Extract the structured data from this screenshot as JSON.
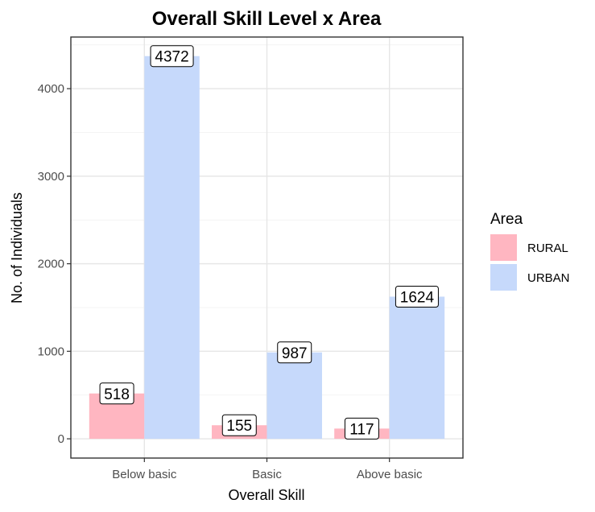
{
  "chart_data": {
    "type": "bar",
    "title": "Overall Skill Level x Area",
    "xlabel": "Overall Skill",
    "ylabel": "No. of Individuals",
    "categories": [
      "Below basic",
      "Basic",
      "Above basic"
    ],
    "series": [
      {
        "name": "RURAL",
        "values": [
          518,
          155,
          117
        ],
        "color": "#ffb6c1"
      },
      {
        "name": "URBAN",
        "values": [
          4372,
          987,
          1624
        ],
        "color": "#c6d9fb"
      }
    ],
    "yticks": [
      0,
      1000,
      2000,
      3000,
      4000
    ],
    "ylim": [
      -220,
      4590
    ],
    "grid": true,
    "legend": {
      "title": "Area",
      "position": "right"
    }
  }
}
